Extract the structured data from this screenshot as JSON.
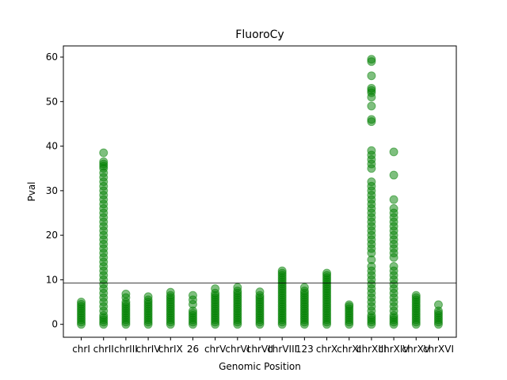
{
  "chart_data": {
    "type": "strip",
    "title": "FluoroCy",
    "xlabel": "Genomic Position",
    "ylabel": "Pval",
    "color": "#008000",
    "categories": [
      "chrI",
      "chrII",
      "chrIII",
      "chrIV",
      "chrIX",
      "26",
      "chrV",
      "chrVI",
      "chrVII",
      "chrVIII",
      "123",
      "chrX",
      "chrXI",
      "chrXIII",
      "chrXIV",
      "chrXV",
      "chrXVI"
    ],
    "values": [
      [
        0,
        0.5,
        1,
        1.5,
        2,
        2.5,
        3,
        3.5,
        4,
        4.5,
        5
      ],
      [
        0,
        0.5,
        1,
        1.5,
        2,
        3,
        4,
        5,
        6,
        7,
        8,
        9,
        10,
        11,
        12,
        13,
        14,
        15,
        16,
        17,
        18,
        19,
        20,
        21,
        22,
        23,
        24,
        25,
        26,
        27,
        28,
        29,
        30,
        31,
        32,
        33,
        34,
        35,
        35.5,
        36,
        36.5,
        38.5
      ],
      [
        0,
        0.5,
        1,
        1.5,
        2,
        2.5,
        3,
        3.5,
        4,
        4.5,
        5,
        6,
        6.8
      ],
      [
        0,
        0.5,
        1,
        1.5,
        2,
        2.5,
        3,
        3.5,
        4,
        4.5,
        5,
        5.5,
        6.2
      ],
      [
        0,
        0.5,
        1,
        1.5,
        2,
        2.5,
        3,
        3.5,
        4,
        4.5,
        5,
        5.5,
        6,
        6.5,
        7.2
      ],
      [
        0,
        0.5,
        1,
        1.5,
        2,
        2.5,
        3,
        4.5,
        5.5,
        6.5
      ],
      [
        0,
        0.5,
        1,
        1.5,
        2,
        2.5,
        3,
        3.5,
        4,
        4.5,
        5,
        5.5,
        6,
        6.5,
        7,
        8
      ],
      [
        0,
        0.5,
        1,
        1.5,
        2,
        2.5,
        3,
        3.5,
        4,
        4.5,
        5,
        5.5,
        6,
        6.5,
        7,
        7.5,
        8.3
      ],
      [
        0,
        0.5,
        1,
        1.5,
        2,
        2.5,
        3,
        3.5,
        4,
        4.5,
        5,
        5.5,
        6,
        6.5,
        7.3
      ],
      [
        0,
        0.5,
        1,
        1.5,
        2,
        2.5,
        3,
        3.5,
        4,
        4.5,
        5,
        5.5,
        6,
        6.5,
        7,
        7.5,
        8,
        8.5,
        9,
        9.5,
        10,
        10.5,
        11,
        11.5,
        12
      ],
      [
        0,
        0.5,
        1,
        1.5,
        2,
        2.5,
        3,
        3.5,
        4,
        4.5,
        5,
        5.5,
        6,
        6.5,
        7,
        7.5,
        8.3
      ],
      [
        0,
        0.5,
        1,
        1.5,
        2,
        2.5,
        3,
        3.5,
        4,
        4.5,
        5,
        5.5,
        6,
        6.5,
        7,
        7.5,
        8,
        8.5,
        9,
        9.5,
        10,
        10.5,
        11,
        11.5
      ],
      [
        0,
        0.5,
        1,
        1.5,
        2,
        2.5,
        3,
        3.5,
        4,
        4.4
      ],
      [
        0,
        0.5,
        1,
        1.5,
        2,
        3,
        4,
        5,
        6,
        7,
        8,
        9,
        10,
        11,
        12,
        13,
        14.5,
        16,
        17,
        18,
        19,
        20,
        21,
        22,
        23,
        24,
        25,
        26,
        27,
        28,
        29,
        30,
        31,
        32,
        35,
        36,
        37,
        38,
        39,
        45.5,
        46,
        49,
        51,
        52,
        52.5,
        53,
        55.8,
        59,
        59.5
      ],
      [
        0,
        0.5,
        1,
        1.5,
        2,
        3,
        4,
        5,
        6,
        7,
        8,
        9,
        10,
        11,
        12,
        13,
        15,
        16,
        17,
        18,
        19,
        20,
        21,
        22,
        23,
        24,
        25,
        26,
        28,
        33.5,
        38.7
      ],
      [
        0,
        0.5,
        1,
        1.5,
        2,
        2.5,
        3,
        3.5,
        4,
        4.5,
        5,
        5.5,
        6,
        6.5
      ],
      [
        0,
        0.5,
        1,
        1.5,
        2,
        2.5,
        3,
        4.4
      ]
    ],
    "hline": 9.3,
    "ylim": [
      -2.9,
      62.5
    ],
    "yticks": [
      0,
      10,
      20,
      30,
      40,
      50,
      60
    ]
  }
}
